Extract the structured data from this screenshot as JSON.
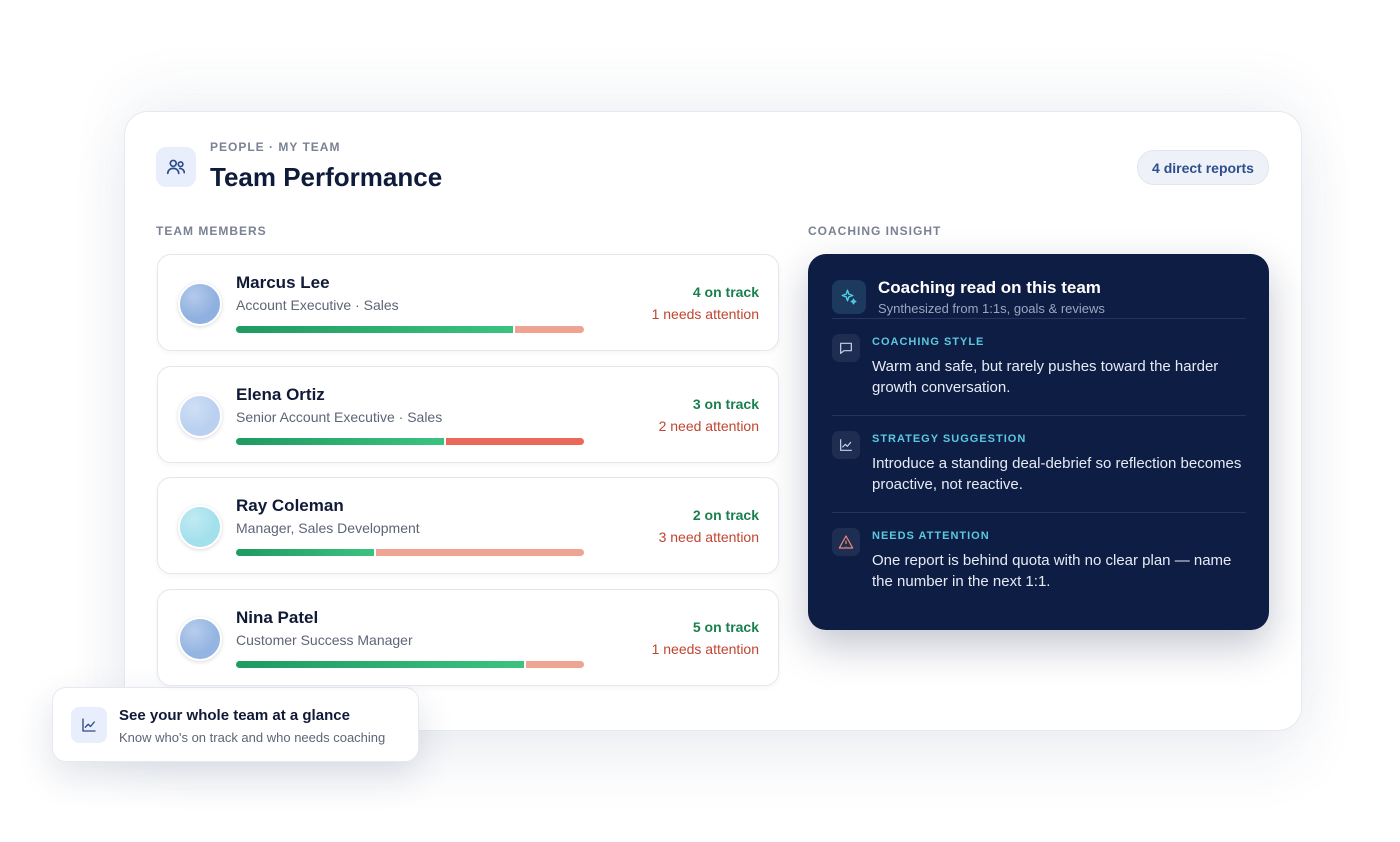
{
  "header": {
    "eyebrow": "PEOPLE · MY TEAM",
    "title": "Team Performance",
    "badge": "4 direct reports"
  },
  "team": {
    "label": "TEAM MEMBERS",
    "members": [
      {
        "name": "Marcus Lee",
        "role": "Account Executive · Sales",
        "on_track": 4,
        "on_track_label": "4 on track",
        "attention": 1,
        "attention_label": "1 needs attention",
        "avatar_color": "#8fb0e0",
        "attention_color": "#eea393"
      },
      {
        "name": "Elena Ortiz",
        "role": "Senior Account Executive · Sales",
        "on_track": 3,
        "on_track_label": "3 on track",
        "attention": 2,
        "attention_label": "2 need attention",
        "avatar_color": "#b9d0f0",
        "attention_color": "#e9685a"
      },
      {
        "name": "Ray Coleman",
        "role": "Manager, Sales Development",
        "on_track": 2,
        "on_track_label": "2 on track",
        "attention": 3,
        "attention_label": "3 need attention",
        "avatar_color": "#a2e0ec",
        "attention_color": "#eea393"
      },
      {
        "name": "Nina Patel",
        "role": "Customer Success Manager",
        "on_track": 5,
        "on_track_label": "5 on track",
        "attention": 1,
        "attention_label": "1 needs attention",
        "avatar_color": "#94b4e2",
        "attention_color": "#eea393"
      }
    ]
  },
  "coaching": {
    "label": "COACHING INSIGHT",
    "title": "Coaching read on this team",
    "subtitle": "Synthesized from 1:1s, goals & reviews",
    "sections": [
      {
        "label": "COACHING STYLE",
        "text": "Warm and safe, but rarely pushes toward the harder growth conversation."
      },
      {
        "label": "STRATEGY SUGGESTION",
        "text": "Introduce a standing deal-debrief so reflection becomes proactive, not reactive."
      },
      {
        "label": "NEEDS ATTENTION",
        "text": "One report is behind quota with no clear plan — name the number in the next 1:1."
      }
    ]
  },
  "callout": {
    "title": "See your whole team at a glance",
    "subtitle": "Know who's on track and who needs coaching"
  }
}
